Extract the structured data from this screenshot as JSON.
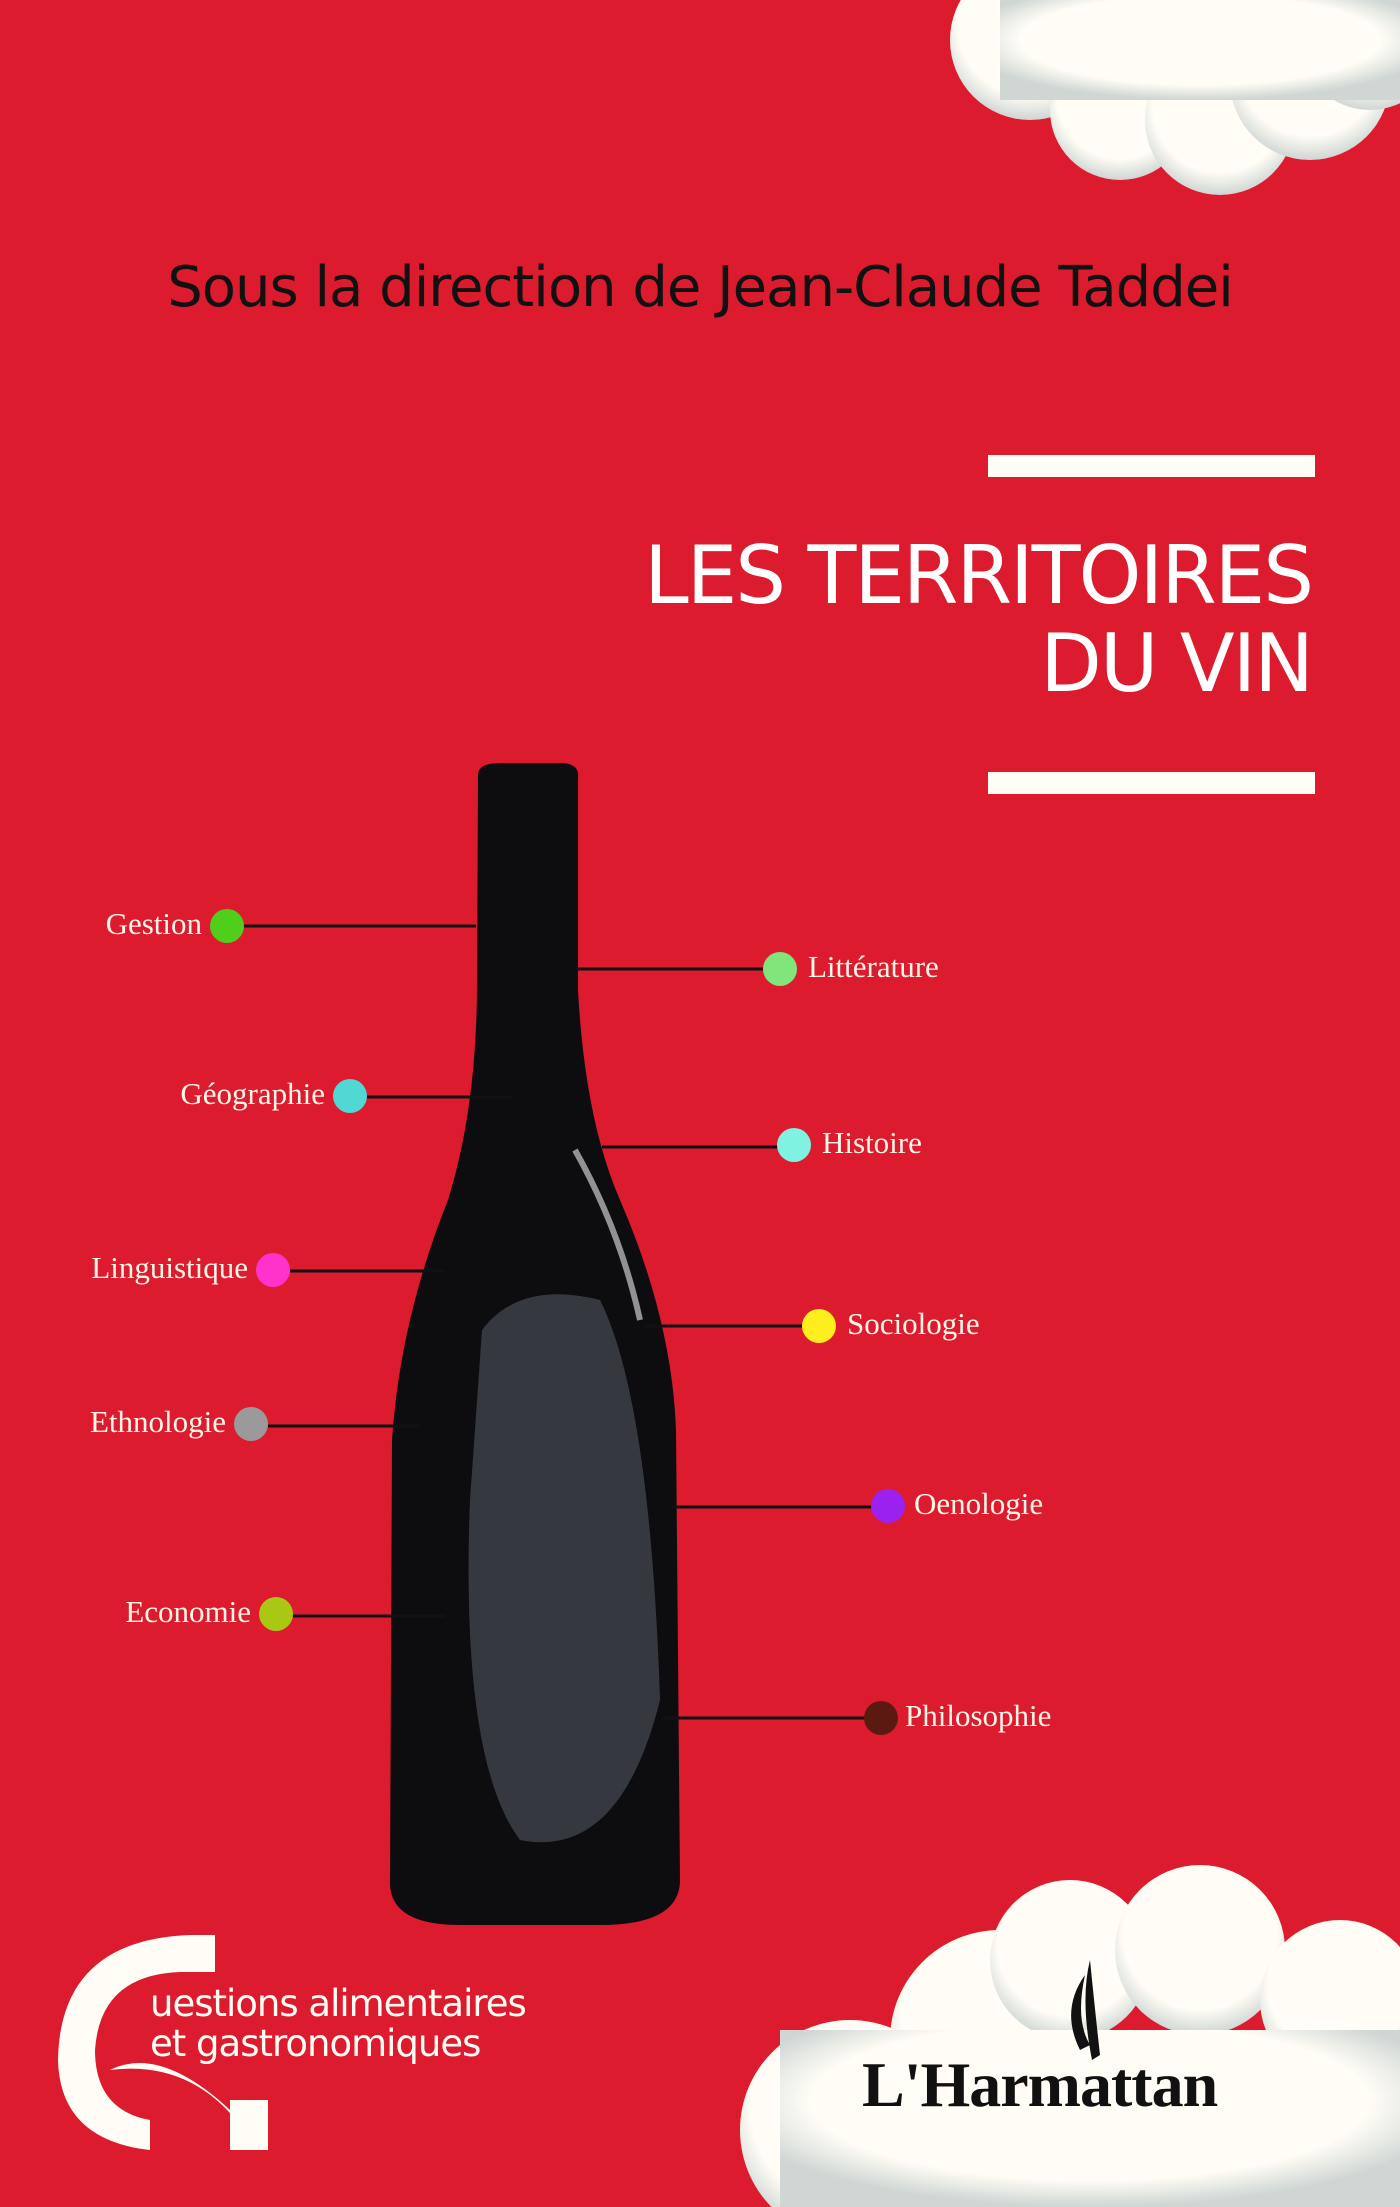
{
  "cover": {
    "editor_line": "Sous la direction de Jean-Claude Taddei",
    "title_line1": "LES TERRITOIRES",
    "title_line2": "DU VIN",
    "background_color": "#dc1c2e"
  },
  "disciplines_left": [
    {
      "label": "Gestion",
      "color": "#4fcf1c"
    },
    {
      "label": "Géographie",
      "color": "#4fd8d4"
    },
    {
      "label": "Linguistique",
      "color": "#ff33cc"
    },
    {
      "label": "Ethnologie",
      "color": "#9a9a9a"
    },
    {
      "label": "Economie",
      "color": "#a8c814"
    }
  ],
  "disciplines_right": [
    {
      "label": "Littérature",
      "color": "#80e67c"
    },
    {
      "label": "Histoire",
      "color": "#80f2e2"
    },
    {
      "label": "Sociologie",
      "color": "#ffee1e"
    },
    {
      "label": "Oenologie",
      "color": "#9b22ee"
    },
    {
      "label": "Philosophie",
      "color": "#5a1a12"
    }
  ],
  "series": {
    "line1": "uestions alimentaires",
    "line2": "et gastronomiques"
  },
  "publisher": {
    "name": "L'Harmattan"
  }
}
